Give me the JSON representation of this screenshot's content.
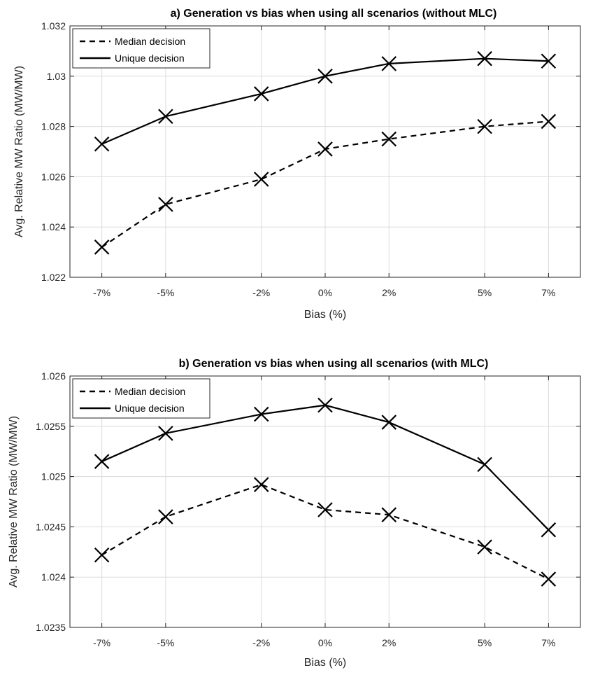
{
  "chart_data": [
    {
      "type": "line",
      "title": "a) Generation vs bias when using all scenarios (without MLC)",
      "xlabel": "Bias (%)",
      "ylabel": "Avg. Relative MW Ratio (MW/MW)",
      "x": [
        -7,
        -5,
        -2,
        0,
        2,
        5,
        7
      ],
      "x_tick_labels": [
        "-7%",
        "-5%",
        "-2%",
        "0%",
        "2%",
        "5%",
        "7%"
      ],
      "xlim": [
        -8,
        8
      ],
      "ylim": [
        1.022,
        1.032
      ],
      "y_ticks": [
        1.022,
        1.024,
        1.026,
        1.028,
        1.03,
        1.032
      ],
      "y_tick_labels": [
        "1.022",
        "1.024",
        "1.026",
        "1.028",
        "1.03",
        "1.032"
      ],
      "grid": true,
      "legend_position": "top-left",
      "series": [
        {
          "name": "Median decision",
          "style": "dashed",
          "marker": "x",
          "values": [
            1.0232,
            1.0249,
            1.0259,
            1.0271,
            1.0275,
            1.028,
            1.0282
          ]
        },
        {
          "name": "Unique decision",
          "style": "solid",
          "marker": "x",
          "values": [
            1.0273,
            1.0284,
            1.0293,
            1.03,
            1.0305,
            1.0307,
            1.0306
          ]
        }
      ]
    },
    {
      "type": "line",
      "title": "b) Generation vs bias when using all scenarios (with MLC)",
      "xlabel": "Bias (%)",
      "ylabel": "Avg. Relative MW Ratio (MW/MW)",
      "x": [
        -7,
        -5,
        -2,
        0,
        2,
        5,
        7
      ],
      "x_tick_labels": [
        "-7%",
        "-5%",
        "-2%",
        "0%",
        "2%",
        "5%",
        "7%"
      ],
      "xlim": [
        -8,
        8
      ],
      "ylim": [
        1.0235,
        1.026
      ],
      "y_ticks": [
        1.0235,
        1.024,
        1.0245,
        1.025,
        1.0255,
        1.026
      ],
      "y_tick_labels": [
        "1.0235",
        "1.024",
        "1.0245",
        "1.025",
        "1.0255",
        "1.026"
      ],
      "grid": true,
      "legend_position": "top-left",
      "series": [
        {
          "name": "Median decision",
          "style": "dashed",
          "marker": "x",
          "values": [
            1.02422,
            1.0246,
            1.02492,
            1.02467,
            1.02462,
            1.0243,
            1.02398
          ]
        },
        {
          "name": "Unique decision",
          "style": "solid",
          "marker": "x",
          "values": [
            1.02515,
            1.02543,
            1.02562,
            1.02571,
            1.02554,
            1.02512,
            1.02447
          ]
        }
      ]
    }
  ]
}
